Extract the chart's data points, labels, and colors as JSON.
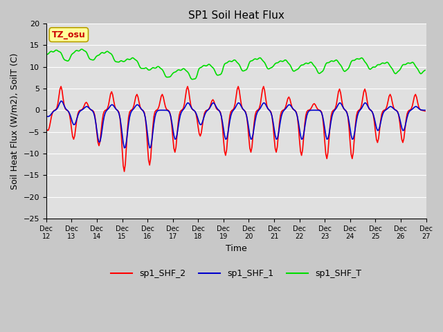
{
  "title": "SP1 Soil Heat Flux",
  "xlabel": "Time",
  "ylabel": "Soil Heat Flux (W/m2), SoilT (C)",
  "ylim": [
    -25,
    20
  ],
  "yticks": [
    -25,
    -20,
    -15,
    -10,
    -5,
    0,
    5,
    10,
    15,
    20
  ],
  "xtick_labels": [
    "Dec 12",
    "Dec 13",
    "Dec 14",
    "Dec 15",
    "Dec 16",
    "Dec 17",
    "Dec 18",
    "Dec 19",
    "Dec 20",
    "Dec 21",
    "Dec 22",
    "Dec 23",
    "Dec 24",
    "Dec 25",
    "Dec 26",
    "Dec 27"
  ],
  "xtick_positions": [
    0,
    24,
    48,
    72,
    96,
    120,
    144,
    168,
    192,
    216,
    240,
    264,
    288,
    312,
    336,
    360
  ],
  "color_shf2": "#ff0000",
  "color_shf1": "#0000cc",
  "color_shft": "#00dd00",
  "fig_facecolor": "#c8c8c8",
  "ax_facecolor": "#e0e0e0",
  "grid_color": "#ffffff",
  "annotation_text": "TZ_osu",
  "annotation_fg": "#cc0000",
  "annotation_bg": "#ffff99",
  "annotation_border": "#b8a000",
  "legend_labels": [
    "sp1_SHF_2",
    "sp1_SHF_1",
    "sp1_SHF_T"
  ],
  "title_fontsize": 11,
  "axis_label_fontsize": 9,
  "tick_fontsize": 8,
  "legend_fontsize": 9,
  "line_width": 1.2
}
